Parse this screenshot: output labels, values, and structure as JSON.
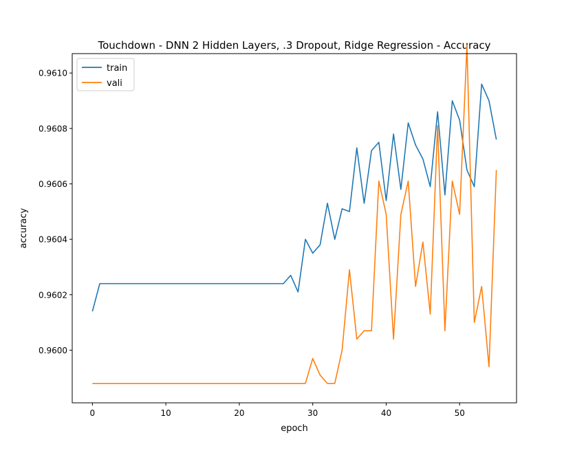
{
  "chart_data": {
    "type": "line",
    "title": "Touchdown - DNN 2 Hidden Layers, .3 Dropout, Ridge Regression - Accuracy",
    "xlabel": "epoch",
    "ylabel": "accuracy",
    "xlim": [
      -2.75,
      57.75
    ],
    "ylim": [
      0.95981,
      0.96107
    ],
    "xticks": [
      0,
      10,
      20,
      30,
      40,
      50
    ],
    "yticks": [
      0.96,
      0.9602,
      0.9604,
      0.9606,
      0.9608,
      0.961
    ],
    "ytick_labels": [
      "0.9600",
      "0.9602",
      "0.9604",
      "0.9606",
      "0.9608",
      "0.9610"
    ],
    "legend_position": "top-left",
    "series": [
      {
        "name": "train",
        "color": "#1f77b4",
        "x": [
          0,
          1,
          2,
          3,
          4,
          5,
          6,
          7,
          8,
          9,
          10,
          11,
          12,
          13,
          14,
          15,
          16,
          17,
          18,
          19,
          20,
          21,
          22,
          23,
          24,
          25,
          26,
          27,
          28,
          29,
          30,
          31,
          32,
          33,
          34,
          35,
          36,
          37,
          38,
          39,
          40,
          41,
          42,
          43,
          44,
          45,
          46,
          47,
          48,
          49,
          50,
          51,
          52,
          53,
          54,
          55
        ],
        "values": [
          0.96014,
          0.96024,
          0.96024,
          0.96024,
          0.96024,
          0.96024,
          0.96024,
          0.96024,
          0.96024,
          0.96024,
          0.96024,
          0.96024,
          0.96024,
          0.96024,
          0.96024,
          0.96024,
          0.96024,
          0.96024,
          0.96024,
          0.96024,
          0.96024,
          0.96024,
          0.96024,
          0.96024,
          0.96024,
          0.96024,
          0.96024,
          0.96027,
          0.96021,
          0.9604,
          0.96035,
          0.96038,
          0.96053,
          0.9604,
          0.96051,
          0.9605,
          0.96073,
          0.96053,
          0.96072,
          0.96075,
          0.96054,
          0.96078,
          0.96058,
          0.96082,
          0.96074,
          0.96069,
          0.96059,
          0.96086,
          0.96056,
          0.9609,
          0.96083,
          0.96065,
          0.96059,
          0.96096,
          0.9609,
          0.96076
        ]
      },
      {
        "name": "vali",
        "color": "#ff7f0e",
        "x": [
          0,
          1,
          2,
          3,
          4,
          5,
          6,
          7,
          8,
          9,
          10,
          11,
          12,
          13,
          14,
          15,
          16,
          17,
          18,
          19,
          20,
          21,
          22,
          23,
          24,
          25,
          26,
          27,
          28,
          29,
          30,
          31,
          32,
          33,
          34,
          35,
          36,
          37,
          38,
          39,
          40,
          41,
          42,
          43,
          44,
          45,
          46,
          47,
          48,
          49,
          50,
          51,
          52,
          53,
          54,
          55
        ],
        "values": [
          0.95988,
          0.95988,
          0.95988,
          0.95988,
          0.95988,
          0.95988,
          0.95988,
          0.95988,
          0.95988,
          0.95988,
          0.95988,
          0.95988,
          0.95988,
          0.95988,
          0.95988,
          0.95988,
          0.95988,
          0.95988,
          0.95988,
          0.95988,
          0.95988,
          0.95988,
          0.95988,
          0.95988,
          0.95988,
          0.95988,
          0.95988,
          0.95988,
          0.95988,
          0.95988,
          0.95997,
          0.95991,
          0.95988,
          0.95988,
          0.96,
          0.96029,
          0.96004,
          0.96007,
          0.96007,
          0.96061,
          0.96049,
          0.96004,
          0.96049,
          0.96061,
          0.96023,
          0.96039,
          0.96013,
          0.96081,
          0.96007,
          0.96061,
          0.96049,
          0.9611,
          0.9601,
          0.96023,
          0.95994,
          0.96065
        ]
      }
    ]
  }
}
